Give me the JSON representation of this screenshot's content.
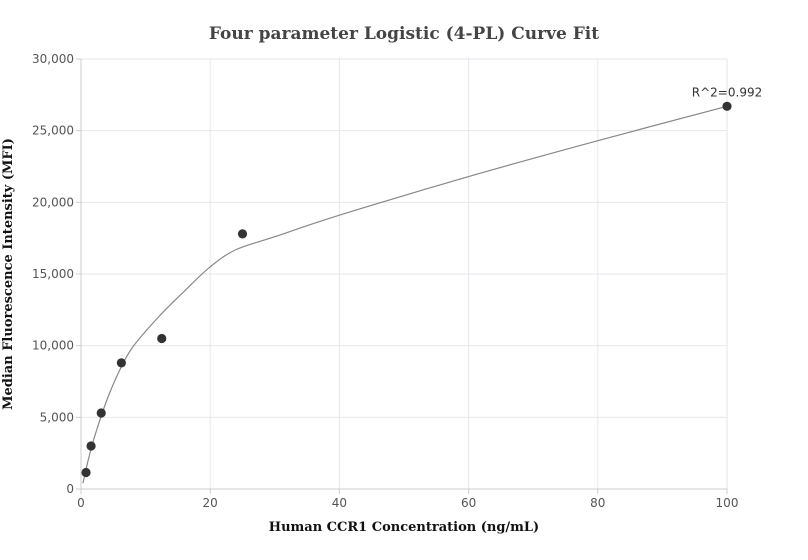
{
  "chart_data": {
    "type": "scatter",
    "title": "Four parameter Logistic (4-PL) Curve Fit",
    "xlabel": "Human CCR1 Concentration (ng/mL)",
    "ylabel": "Median Fluorescence Intensity (MFI)",
    "xlim": [
      0,
      100
    ],
    "ylim": [
      0,
      30000
    ],
    "x_ticks": [
      0,
      20,
      40,
      60,
      80,
      100
    ],
    "x_tick_labels": [
      "0",
      "20",
      "40",
      "60",
      "80",
      "100"
    ],
    "y_ticks": [
      0,
      5000,
      10000,
      15000,
      20000,
      25000,
      30000
    ],
    "y_tick_labels": [
      "0",
      "5,000",
      "10,000",
      "15,000",
      "20,000",
      "25,000",
      "30,000"
    ],
    "grid": true,
    "series": [
      {
        "points": [
          {
            "x": 0.78,
            "y": 1150
          },
          {
            "x": 1.56,
            "y": 3000
          },
          {
            "x": 3.13,
            "y": 5300
          },
          {
            "x": 6.25,
            "y": 8800
          },
          {
            "x": 12.5,
            "y": 10500
          },
          {
            "x": 25,
            "y": 17800
          },
          {
            "x": 100,
            "y": 26700
          }
        ],
        "color": "#333333"
      }
    ],
    "fit_curve": {
      "points": [
        {
          "x": 0.3,
          "y": 400
        },
        {
          "x": 1,
          "y": 1800
        },
        {
          "x": 2,
          "y": 3500
        },
        {
          "x": 4,
          "y": 6200
        },
        {
          "x": 6,
          "y": 8300
        },
        {
          "x": 8,
          "y": 9900
        },
        {
          "x": 12,
          "y": 12000
        },
        {
          "x": 16,
          "y": 13800
        },
        {
          "x": 20,
          "y": 15500
        },
        {
          "x": 24,
          "y": 16700
        },
        {
          "x": 30,
          "y": 17600
        },
        {
          "x": 40,
          "y": 19100
        },
        {
          "x": 60,
          "y": 21800
        },
        {
          "x": 80,
          "y": 24300
        },
        {
          "x": 100,
          "y": 26700
        }
      ],
      "color": "#888888"
    },
    "annotation": {
      "text": "R^2=0.992",
      "x": 100,
      "y": 26700
    }
  }
}
